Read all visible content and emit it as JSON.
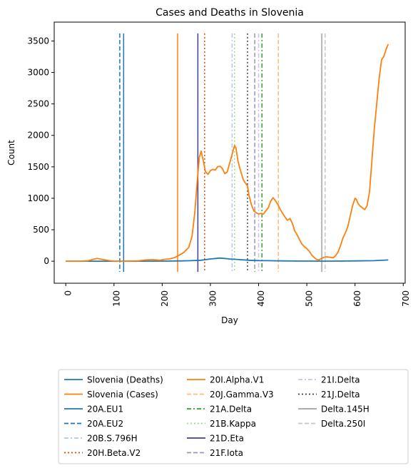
{
  "chart_data": {
    "type": "line",
    "title": "Cases and Deaths in Slovenia",
    "xlabel": "Day",
    "ylabel": "Count",
    "xlim": [
      -24,
      704
    ],
    "ylim": [
      -350,
      3800
    ],
    "grid": false,
    "legend_position": "bottom (outside plot, 3 columns)",
    "x_ticks": [
      0,
      100,
      200,
      300,
      400,
      500,
      600,
      700
    ],
    "y_ticks": [
      0,
      500,
      1000,
      1500,
      2000,
      2500,
      3000,
      3500
    ],
    "series": [
      {
        "name": "Slovenia (Deaths)",
        "color": "#1f77b4",
        "points": [
          [
            0,
            0
          ],
          [
            50,
            0
          ],
          [
            100,
            0
          ],
          [
            150,
            0
          ],
          [
            200,
            2
          ],
          [
            240,
            5
          ],
          [
            260,
            8
          ],
          [
            280,
            15
          ],
          [
            300,
            35
          ],
          [
            320,
            50
          ],
          [
            340,
            35
          ],
          [
            360,
            25
          ],
          [
            380,
            15
          ],
          [
            400,
            10
          ],
          [
            420,
            8
          ],
          [
            450,
            5
          ],
          [
            480,
            3
          ],
          [
            520,
            2
          ],
          [
            560,
            2
          ],
          [
            600,
            5
          ],
          [
            640,
            8
          ],
          [
            669,
            20
          ]
        ]
      },
      {
        "name": "Slovenia (Cases)",
        "color": "#ff7f0e",
        "points": [
          [
            0,
            0
          ],
          [
            30,
            0
          ],
          [
            45,
            5
          ],
          [
            55,
            25
          ],
          [
            65,
            45
          ],
          [
            75,
            30
          ],
          [
            90,
            10
          ],
          [
            100,
            0
          ],
          [
            120,
            0
          ],
          [
            150,
            5
          ],
          [
            165,
            20
          ],
          [
            180,
            25
          ],
          [
            195,
            15
          ],
          [
            205,
            30
          ],
          [
            215,
            35
          ],
          [
            225,
            55
          ],
          [
            235,
            95
          ],
          [
            245,
            140
          ],
          [
            255,
            220
          ],
          [
            262,
            400
          ],
          [
            268,
            800
          ],
          [
            273,
            1300
          ],
          [
            277,
            1650
          ],
          [
            281,
            1750
          ],
          [
            285,
            1600
          ],
          [
            290,
            1420
          ],
          [
            295,
            1380
          ],
          [
            300,
            1440
          ],
          [
            305,
            1460
          ],
          [
            310,
            1450
          ],
          [
            315,
            1500
          ],
          [
            320,
            1510
          ],
          [
            325,
            1470
          ],
          [
            330,
            1390
          ],
          [
            335,
            1420
          ],
          [
            340,
            1560
          ],
          [
            345,
            1700
          ],
          [
            350,
            1840
          ],
          [
            353,
            1800
          ],
          [
            357,
            1600
          ],
          [
            362,
            1450
          ],
          [
            368,
            1300
          ],
          [
            372,
            1250
          ],
          [
            377,
            1200
          ],
          [
            380,
            1050
          ],
          [
            385,
            900
          ],
          [
            390,
            800
          ],
          [
            395,
            770
          ],
          [
            400,
            750
          ],
          [
            405,
            760
          ],
          [
            410,
            750
          ],
          [
            415,
            800
          ],
          [
            420,
            850
          ],
          [
            425,
            950
          ],
          [
            430,
            1010
          ],
          [
            435,
            960
          ],
          [
            440,
            900
          ],
          [
            445,
            820
          ],
          [
            450,
            760
          ],
          [
            455,
            700
          ],
          [
            460,
            650
          ],
          [
            465,
            680
          ],
          [
            470,
            600
          ],
          [
            475,
            480
          ],
          [
            480,
            420
          ],
          [
            485,
            340
          ],
          [
            490,
            270
          ],
          [
            495,
            230
          ],
          [
            500,
            200
          ],
          [
            505,
            160
          ],
          [
            510,
            100
          ],
          [
            515,
            60
          ],
          [
            520,
            30
          ],
          [
            525,
            20
          ],
          [
            530,
            40
          ],
          [
            535,
            60
          ],
          [
            540,
            70
          ],
          [
            545,
            65
          ],
          [
            550,
            60
          ],
          [
            555,
            55
          ],
          [
            560,
            90
          ],
          [
            565,
            150
          ],
          [
            570,
            250
          ],
          [
            575,
            370
          ],
          [
            580,
            450
          ],
          [
            585,
            550
          ],
          [
            590,
            720
          ],
          [
            595,
            880
          ],
          [
            600,
            1000
          ],
          [
            603,
            980
          ],
          [
            606,
            920
          ],
          [
            610,
            880
          ],
          [
            615,
            850
          ],
          [
            620,
            820
          ],
          [
            625,
            880
          ],
          [
            630,
            1100
          ],
          [
            635,
            1600
          ],
          [
            640,
            2100
          ],
          [
            645,
            2500
          ],
          [
            650,
            2900
          ],
          [
            655,
            3200
          ],
          [
            660,
            3260
          ],
          [
            665,
            3380
          ],
          [
            669,
            3450
          ]
        ]
      }
    ],
    "variant_lines": [
      {
        "name": "20A.EU1",
        "x": 120,
        "color": "#1f77b4",
        "style": "solid"
      },
      {
        "name": "20A.EU2",
        "x": 112,
        "color": "#1f77b4",
        "style": "dashed"
      },
      {
        "name": "20B.S.796H",
        "x": 345,
        "color": "#aec7e8",
        "style": "dashdot"
      },
      {
        "name": "20H.Beta.V2",
        "x": 288,
        "color": "#d94801",
        "style": "dotted"
      },
      {
        "name": "20I.Alpha.V1",
        "x": 232,
        "color": "#ff7f0e",
        "style": "solid"
      },
      {
        "name": "20J.Gamma.V3",
        "x": 441,
        "color": "#ffbb78",
        "style": "dashed"
      },
      {
        "name": "21A.Delta",
        "x": 407,
        "color": "#2ca02c",
        "style": "dashdot"
      },
      {
        "name": "21B.Kappa",
        "x": 350,
        "color": "#98df8a",
        "style": "dotted"
      },
      {
        "name": "21D.Eta",
        "x": 274,
        "color": "#3f3f8f",
        "style": "solid"
      },
      {
        "name": "21F.Iota",
        "x": 392,
        "color": "#9f92b8",
        "style": "dashed"
      },
      {
        "name": "21I.Delta",
        "x": 400,
        "color": "#c9c4e0",
        "style": "dashdot"
      },
      {
        "name": "21J.Delta",
        "x": 377,
        "color": "#404040",
        "style": "dotted"
      },
      {
        "name": "Delta.145H",
        "x": 531,
        "color": "#a0a0a0",
        "style": "solid"
      },
      {
        "name": "Delta.250I",
        "x": 538,
        "color": "#c7c7c7",
        "style": "dashed"
      }
    ]
  }
}
